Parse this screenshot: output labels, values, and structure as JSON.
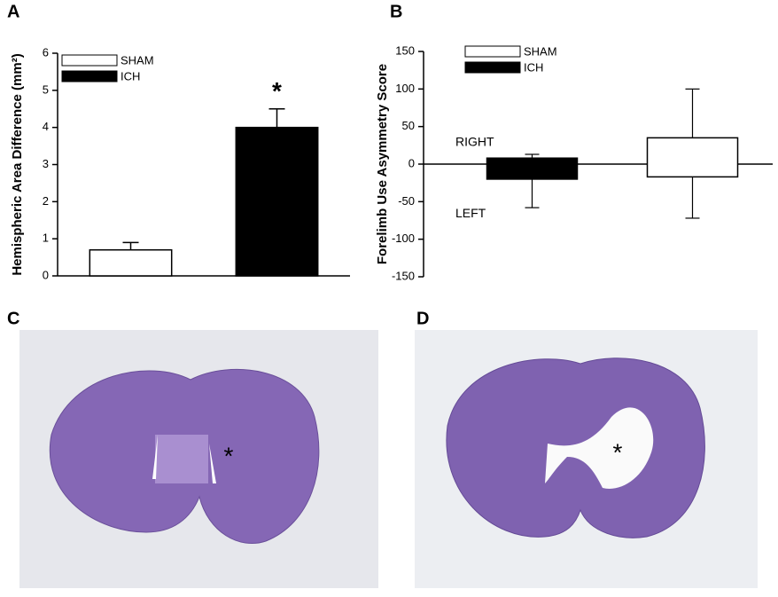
{
  "chart_data": [
    {
      "type": "bar",
      "panel": "A",
      "ylabel": "Hemispheric Area Difference (mm²)",
      "series": [
        {
          "name": "SHAM",
          "color": "#ffffff",
          "values": [
            0.7
          ],
          "errors": [
            0.2
          ]
        },
        {
          "name": "ICH",
          "color": "#000000",
          "values": [
            4.0
          ],
          "errors": [
            0.5
          ],
          "annotation": "*"
        }
      ],
      "ylim": [
        0,
        6
      ],
      "yticks": [
        0,
        1,
        2,
        3,
        4,
        5,
        6
      ]
    },
    {
      "type": "box",
      "panel": "B",
      "ylabel": "Forelimb Use Asymmetry Score",
      "series": [
        {
          "name": "ICH",
          "color": "#000000",
          "low": -58,
          "q1": -20,
          "q3": 8,
          "high": 13
        },
        {
          "name": "SHAM",
          "color": "#ffffff",
          "low": -72,
          "q1": -17,
          "q3": 35,
          "high": 100
        }
      ],
      "annotations": [
        "RIGHT",
        "LEFT"
      ],
      "ylim": [
        -150,
        150
      ],
      "yticks": [
        -150,
        -100,
        -50,
        0,
        50,
        100,
        150
      ]
    }
  ],
  "images": [
    {
      "panel": "C",
      "annotation": "*"
    },
    {
      "panel": "D",
      "annotation": "*"
    }
  ]
}
